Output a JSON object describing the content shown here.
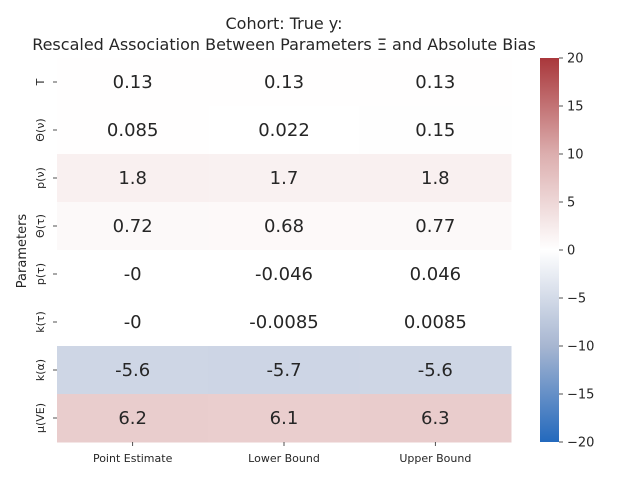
{
  "chart_data": {
    "type": "heatmap",
    "title_line1": "Cohort: True y:",
    "title_line2": "Rescaled Association Between Parameters Ξ and Absolute Bias",
    "ylabel": "Parameters",
    "xlabel": "",
    "columns": [
      "Point Estimate",
      "Lower Bound",
      "Upper Bound"
    ],
    "rows": [
      "T",
      "Θ(ν)",
      "p(ν)",
      "Θ(τ)",
      "p(τ)",
      "k(τ)",
      "k(α)",
      "μ(VE)"
    ],
    "values": [
      [
        0.13,
        0.13,
        0.13
      ],
      [
        0.085,
        0.022,
        0.15
      ],
      [
        1.8,
        1.7,
        1.8
      ],
      [
        0.72,
        0.68,
        0.77
      ],
      [
        0,
        -0.046,
        0.046
      ],
      [
        0,
        -0.0085,
        0.0085
      ],
      [
        -5.6,
        -5.7,
        -5.6
      ],
      [
        6.2,
        6.1,
        6.3
      ]
    ],
    "labels": [
      [
        "0.13",
        "0.13",
        "0.13"
      ],
      [
        "0.085",
        "0.022",
        "0.15"
      ],
      [
        "1.8",
        "1.7",
        "1.8"
      ],
      [
        "0.72",
        "0.68",
        "0.77"
      ],
      [
        "-0",
        "-0.046",
        "0.046"
      ],
      [
        "-0",
        "-0.0085",
        "0.0085"
      ],
      [
        "-5.6",
        "-5.7",
        "-5.6"
      ],
      [
        "6.2",
        "6.1",
        "6.3"
      ]
    ],
    "colorbar": {
      "vmin": -20,
      "vmax": 20,
      "ticks": [
        20,
        15,
        10,
        5,
        0,
        -5,
        -10,
        -15,
        -20
      ],
      "tick_labels": [
        "20",
        "15",
        "10",
        "5",
        "0",
        "−5",
        "−10",
        "−15",
        "−20"
      ],
      "colormap": "vlag"
    },
    "colors": {
      "low": "#2369bd",
      "mid": "#ffffff",
      "high": "#a9373b"
    },
    "grid": false,
    "legend": "colorbar-right"
  }
}
